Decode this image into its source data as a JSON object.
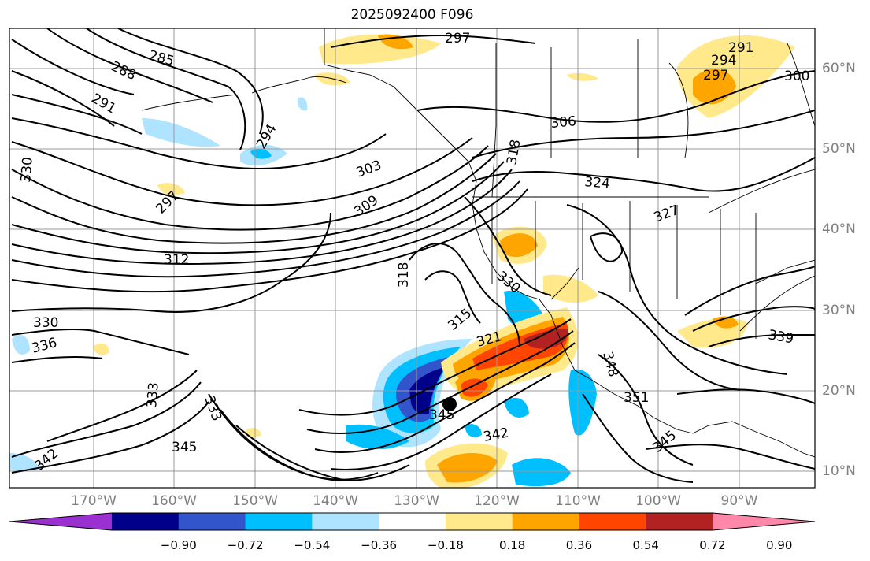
{
  "title": "2025092400 F096",
  "colors": {
    "coast": "#000000",
    "grid": "#999999",
    "axis_label": "#808080"
  },
  "map": {
    "lon_ticks": [
      "170°W",
      "160°W",
      "150°W",
      "140°W",
      "130°W",
      "120°W",
      "110°W",
      "100°W",
      "90°W"
    ],
    "lat_ticks": [
      "60°N",
      "50°N",
      "40°N",
      "30°N",
      "20°N",
      "10°N"
    ],
    "contour_labels": [
      "285",
      "288",
      "291",
      "294",
      "297",
      "297",
      "303",
      "306",
      "309",
      "312",
      "315",
      "318",
      "318",
      "321",
      "324",
      "327",
      "330",
      "330",
      "330",
      "333",
      "333",
      "336",
      "339",
      "342",
      "342",
      "345",
      "345",
      "345",
      "348",
      "351",
      "291",
      "294",
      "297",
      "300"
    ],
    "marker": "storm-center-dot"
  },
  "colorbar": {
    "colors": [
      "#9b30d0",
      "#00008b",
      "#3355cc",
      "#00bfff",
      "#aee4ff",
      "#ffffff",
      "#ffe98a",
      "#ffa500",
      "#ff4500",
      "#b22222",
      "#ff88aa"
    ],
    "labels": [
      "−0.90",
      "−0.72",
      "−0.54",
      "−0.36",
      "−0.18",
      "0.18",
      "0.36",
      "0.54",
      "0.72",
      "0.90"
    ]
  }
}
